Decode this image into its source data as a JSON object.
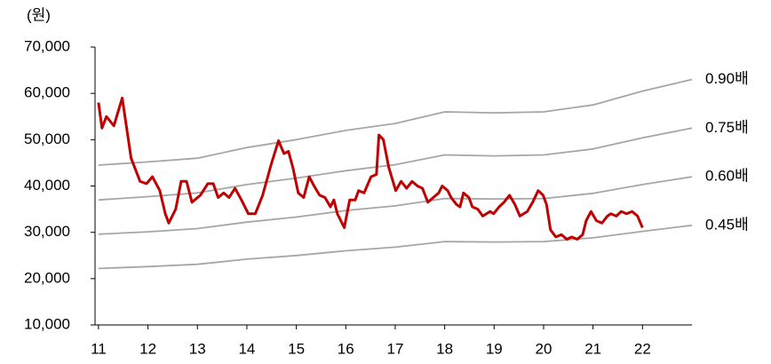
{
  "chart_data": {
    "type": "line",
    "y_label": "(원)",
    "xlim": [
      10.93,
      23
    ],
    "xticks": [
      11,
      12,
      13,
      14,
      15,
      16,
      17,
      18,
      19,
      20,
      21,
      22
    ],
    "ylim": [
      10000,
      70000
    ],
    "yticks": [
      {
        "value": 10000,
        "label": "10,000"
      },
      {
        "value": 20000,
        "label": "20,000"
      },
      {
        "value": 30000,
        "label": "30,000"
      },
      {
        "value": 40000,
        "label": "40,000"
      },
      {
        "value": 50000,
        "label": "50,000"
      },
      {
        "value": 60000,
        "label": "60,000"
      },
      {
        "value": 70000,
        "label": "70,000"
      }
    ],
    "series": [
      {
        "name": "0.90배",
        "color": "#a6a6a6",
        "x": [
          11,
          12,
          13,
          14,
          15,
          16,
          17,
          18,
          19,
          20,
          21,
          22,
          23
        ],
        "values": [
          44500,
          45200,
          46000,
          48300,
          50000,
          52000,
          53500,
          56000,
          55800,
          56000,
          57500,
          60500,
          63000
        ]
      },
      {
        "name": "0.75배",
        "color": "#a6a6a6",
        "x": [
          11,
          12,
          13,
          14,
          15,
          16,
          17,
          18,
          19,
          20,
          21,
          22,
          23
        ],
        "values": [
          37000,
          37700,
          38500,
          40300,
          41700,
          43300,
          44600,
          46700,
          46500,
          46700,
          48000,
          50400,
          52500
        ]
      },
      {
        "name": "0.60배",
        "color": "#a6a6a6",
        "x": [
          11,
          12,
          13,
          14,
          15,
          16,
          17,
          18,
          19,
          20,
          21,
          22,
          23
        ],
        "values": [
          29600,
          30100,
          30800,
          32200,
          33300,
          34700,
          35700,
          37300,
          37200,
          37300,
          38400,
          40300,
          42000
        ]
      },
      {
        "name": "0.45배",
        "color": "#a6a6a6",
        "x": [
          11,
          12,
          13,
          14,
          15,
          16,
          17,
          18,
          19,
          20,
          21,
          22,
          23
        ],
        "values": [
          22200,
          22600,
          23100,
          24200,
          25000,
          26000,
          26800,
          28000,
          27900,
          28000,
          28800,
          30200,
          31500
        ]
      },
      {
        "color": "#c00000",
        "x": [
          11.0,
          11.07,
          11.16,
          11.31,
          11.48,
          11.66,
          11.84,
          11.97,
          12.09,
          12.24,
          12.35,
          12.42,
          12.56,
          12.67,
          12.78,
          12.89,
          13.06,
          13.21,
          13.32,
          13.42,
          13.53,
          13.64,
          13.76,
          13.89,
          14.03,
          14.17,
          14.32,
          14.5,
          14.64,
          14.75,
          14.84,
          14.93,
          15.04,
          15.15,
          15.26,
          15.36,
          15.47,
          15.58,
          15.69,
          15.76,
          15.83,
          15.97,
          16.08,
          16.19,
          16.26,
          16.37,
          16.51,
          16.62,
          16.67,
          16.76,
          16.87,
          17.01,
          17.12,
          17.23,
          17.34,
          17.45,
          17.55,
          17.66,
          17.77,
          17.88,
          17.95,
          18.06,
          18.13,
          18.24,
          18.31,
          18.38,
          18.49,
          18.56,
          18.67,
          18.77,
          18.92,
          18.99,
          19.1,
          19.2,
          19.31,
          19.42,
          19.52,
          19.67,
          19.78,
          19.89,
          19.99,
          20.06,
          20.14,
          20.25,
          20.36,
          20.47,
          20.57,
          20.68,
          20.79,
          20.86,
          20.96,
          21.07,
          21.18,
          21.29,
          21.36,
          21.47,
          21.57,
          21.68,
          21.79,
          21.9,
          22.0
        ],
        "values": [
          58000,
          52500,
          55000,
          53000,
          59000,
          46000,
          41000,
          40500,
          42000,
          39000,
          34000,
          32000,
          35000,
          41000,
          41000,
          36500,
          38000,
          40500,
          40500,
          37500,
          38500,
          37500,
          39500,
          37000,
          34000,
          34000,
          38000,
          45000,
          49800,
          47000,
          47500,
          44000,
          38500,
          37500,
          42000,
          40000,
          38000,
          37500,
          35500,
          37000,
          34000,
          31000,
          37000,
          37000,
          39000,
          38500,
          42000,
          42500,
          51000,
          50000,
          44000,
          39000,
          41000,
          39500,
          41000,
          40000,
          39500,
          36500,
          37500,
          38500,
          40000,
          39000,
          37500,
          36000,
          35500,
          38500,
          37500,
          35500,
          35000,
          33500,
          34500,
          34000,
          35500,
          36500,
          38000,
          36000,
          33500,
          34500,
          36500,
          39000,
          38000,
          36000,
          30500,
          29000,
          29500,
          28500,
          29000,
          28500,
          29500,
          32500,
          34500,
          32500,
          32000,
          33500,
          34000,
          33500,
          34500,
          34000,
          34500,
          33500,
          31000
        ]
      }
    ]
  }
}
